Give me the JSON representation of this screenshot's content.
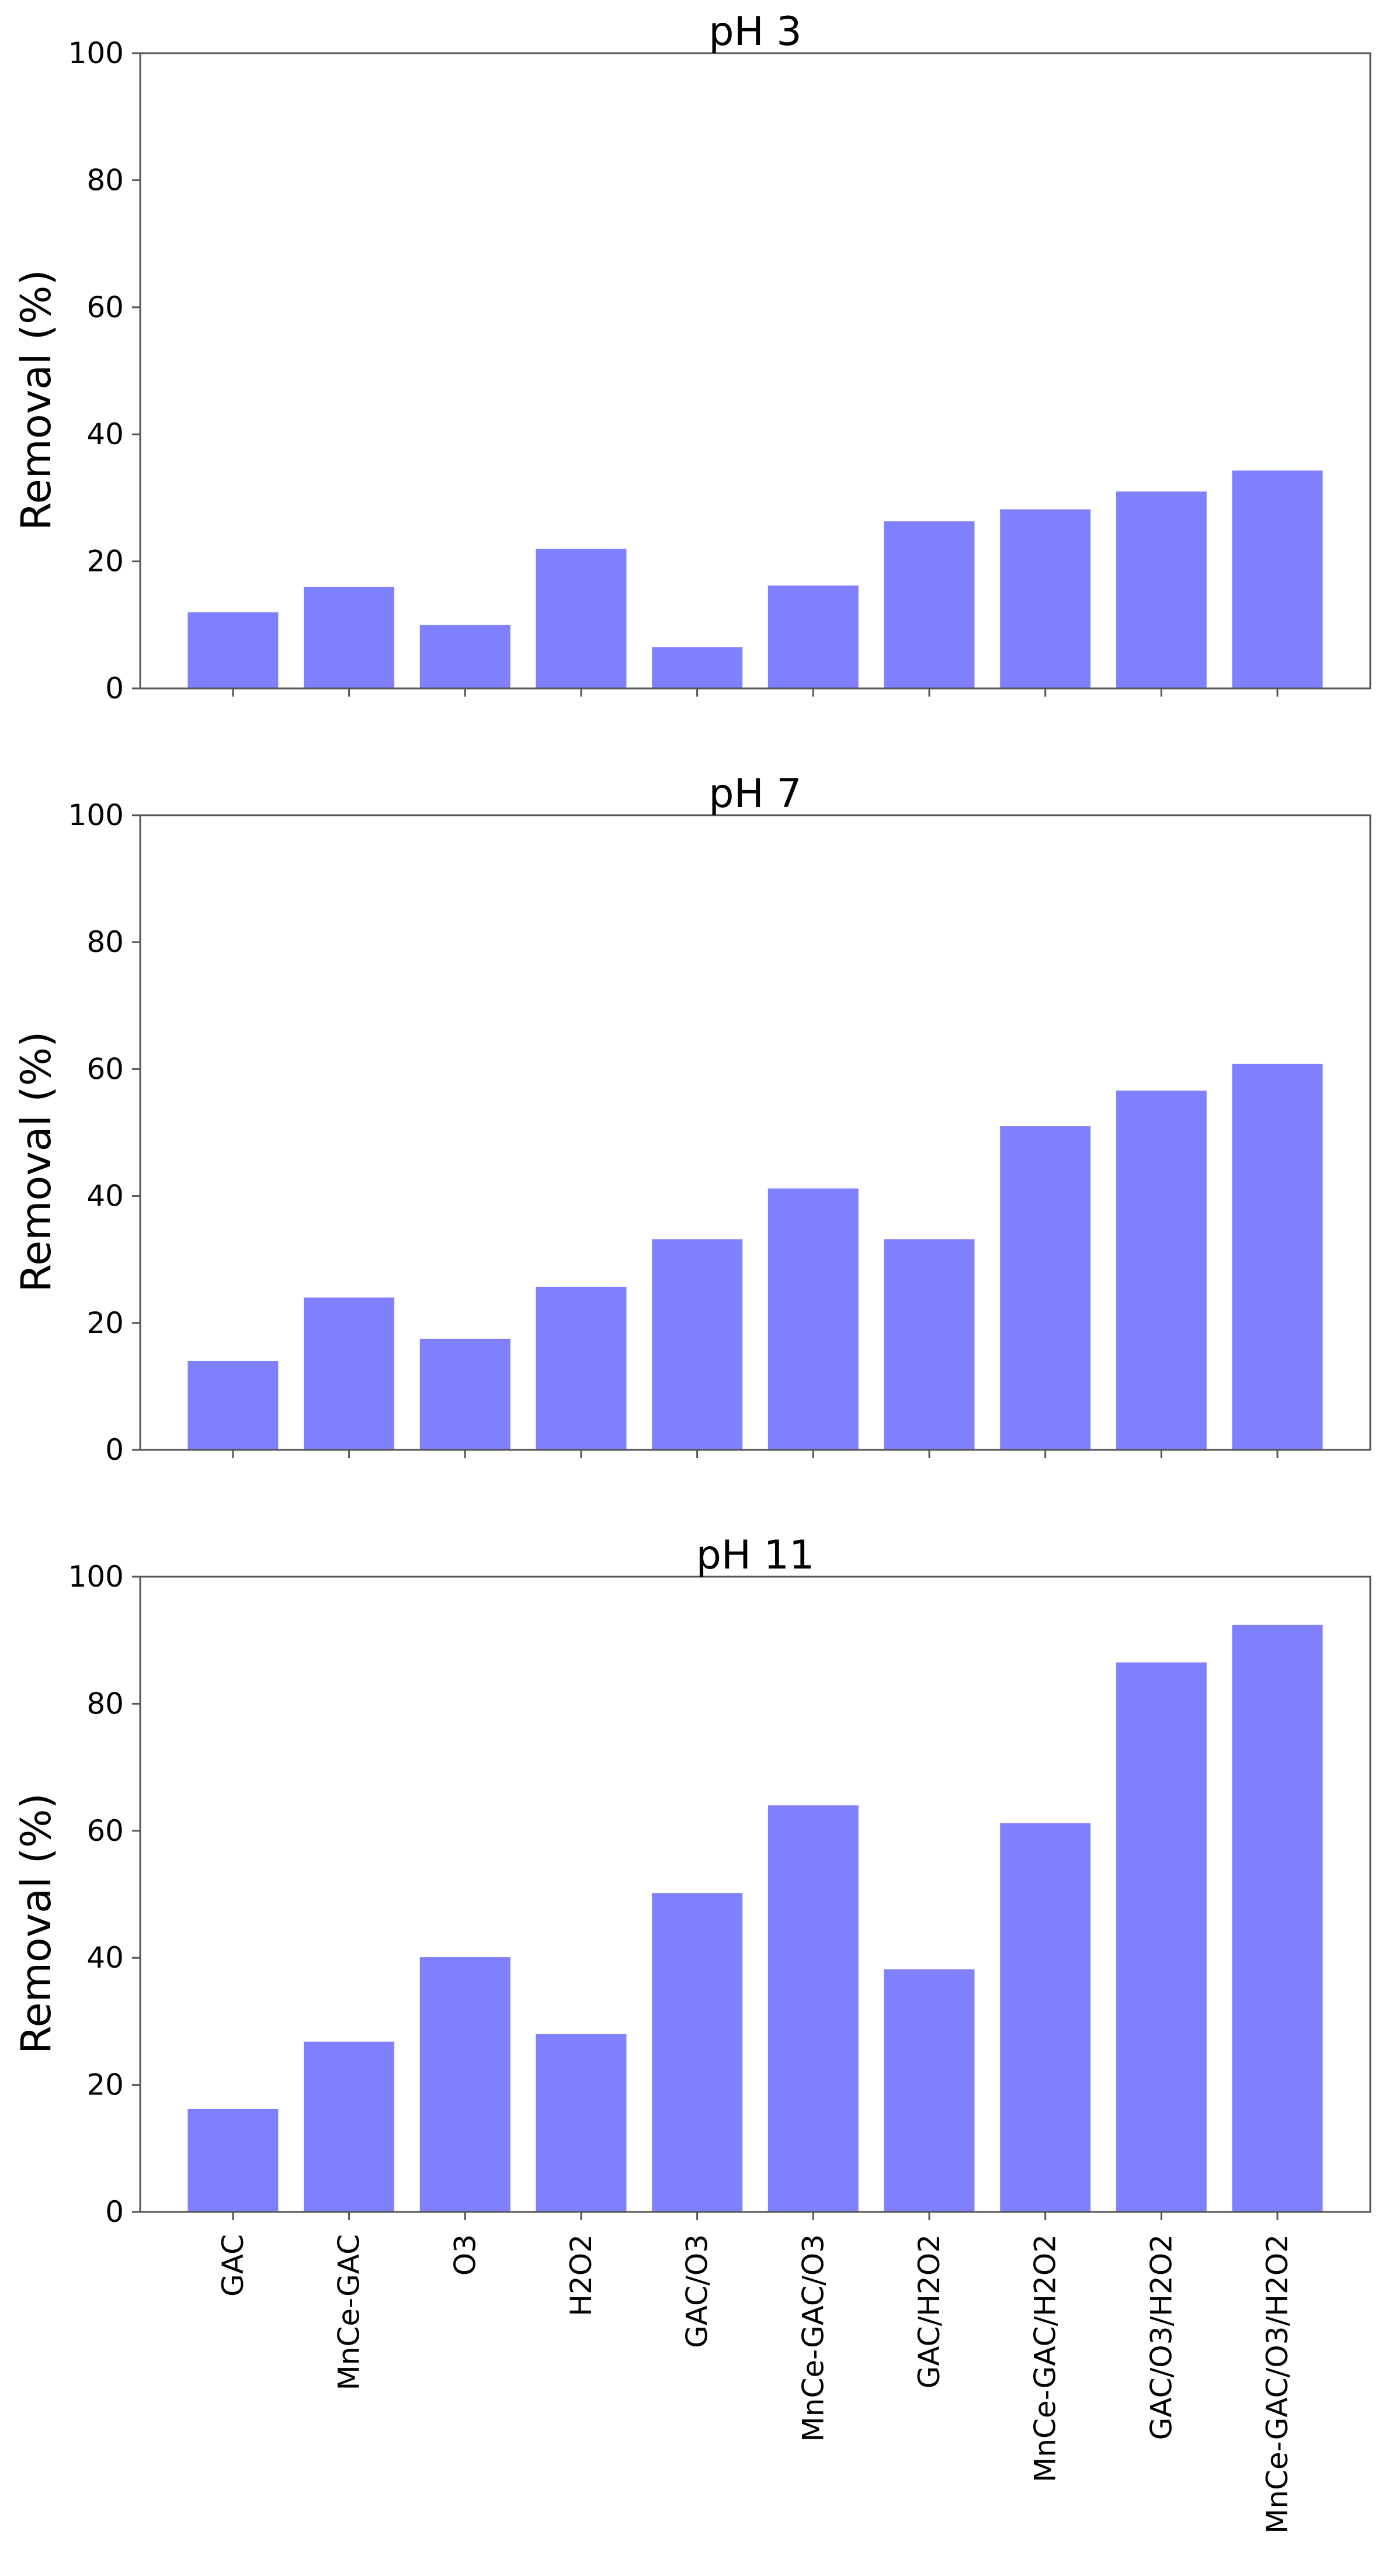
{
  "colors": {
    "bar": "#8080ff",
    "axis": "#555555",
    "text": "#000000"
  },
  "chart_data": [
    {
      "type": "bar",
      "title": "pH 3",
      "xlabel": "",
      "ylabel": "Removal (%)",
      "ylim": [
        0,
        100
      ],
      "yticks": [
        0,
        20,
        40,
        60,
        80,
        100
      ],
      "categories": [
        "GAC",
        "MnCe-GAC",
        "O3",
        "H2O2",
        "GAC/O3",
        "MnCe-GAC/O3",
        "GAC/H2O2",
        "MnCe-GAC/H2O2",
        "GAC/O3/H2O2",
        "MnCe-GAC/O3/H2O2"
      ],
      "values": [
        12,
        16,
        10,
        22,
        6.5,
        16.2,
        26.3,
        28.2,
        31,
        34.3
      ],
      "show_category_labels": false
    },
    {
      "type": "bar",
      "title": "pH 7",
      "xlabel": "",
      "ylabel": "Removal (%)",
      "ylim": [
        0,
        100
      ],
      "yticks": [
        0,
        20,
        40,
        60,
        80,
        100
      ],
      "categories": [
        "GAC",
        "MnCe-GAC",
        "O3",
        "H2O2",
        "GAC/O3",
        "MnCe-GAC/O3",
        "GAC/H2O2",
        "MnCe-GAC/H2O2",
        "GAC/O3/H2O2",
        "MnCe-GAC/O3/H2O2"
      ],
      "values": [
        14,
        24,
        17.5,
        25.7,
        33.2,
        41.2,
        33.2,
        51,
        56.6,
        60.8
      ],
      "show_category_labels": false
    },
    {
      "type": "bar",
      "title": "pH 11",
      "xlabel": "",
      "ylabel": "Removal (%)",
      "ylim": [
        0,
        100
      ],
      "yticks": [
        0,
        20,
        40,
        60,
        80,
        100
      ],
      "categories": [
        "GAC",
        "MnCe-GAC",
        "O3",
        "H2O2",
        "GAC/O3",
        "MnCe-GAC/O3",
        "GAC/H2O2",
        "MnCe-GAC/H2O2",
        "GAC/O3/H2O2",
        "MnCe-GAC/O3/H2O2"
      ],
      "values": [
        16.2,
        26.8,
        40.1,
        28,
        50.2,
        64,
        38.2,
        61.2,
        86.5,
        92.4
      ],
      "show_category_labels": true
    }
  ]
}
